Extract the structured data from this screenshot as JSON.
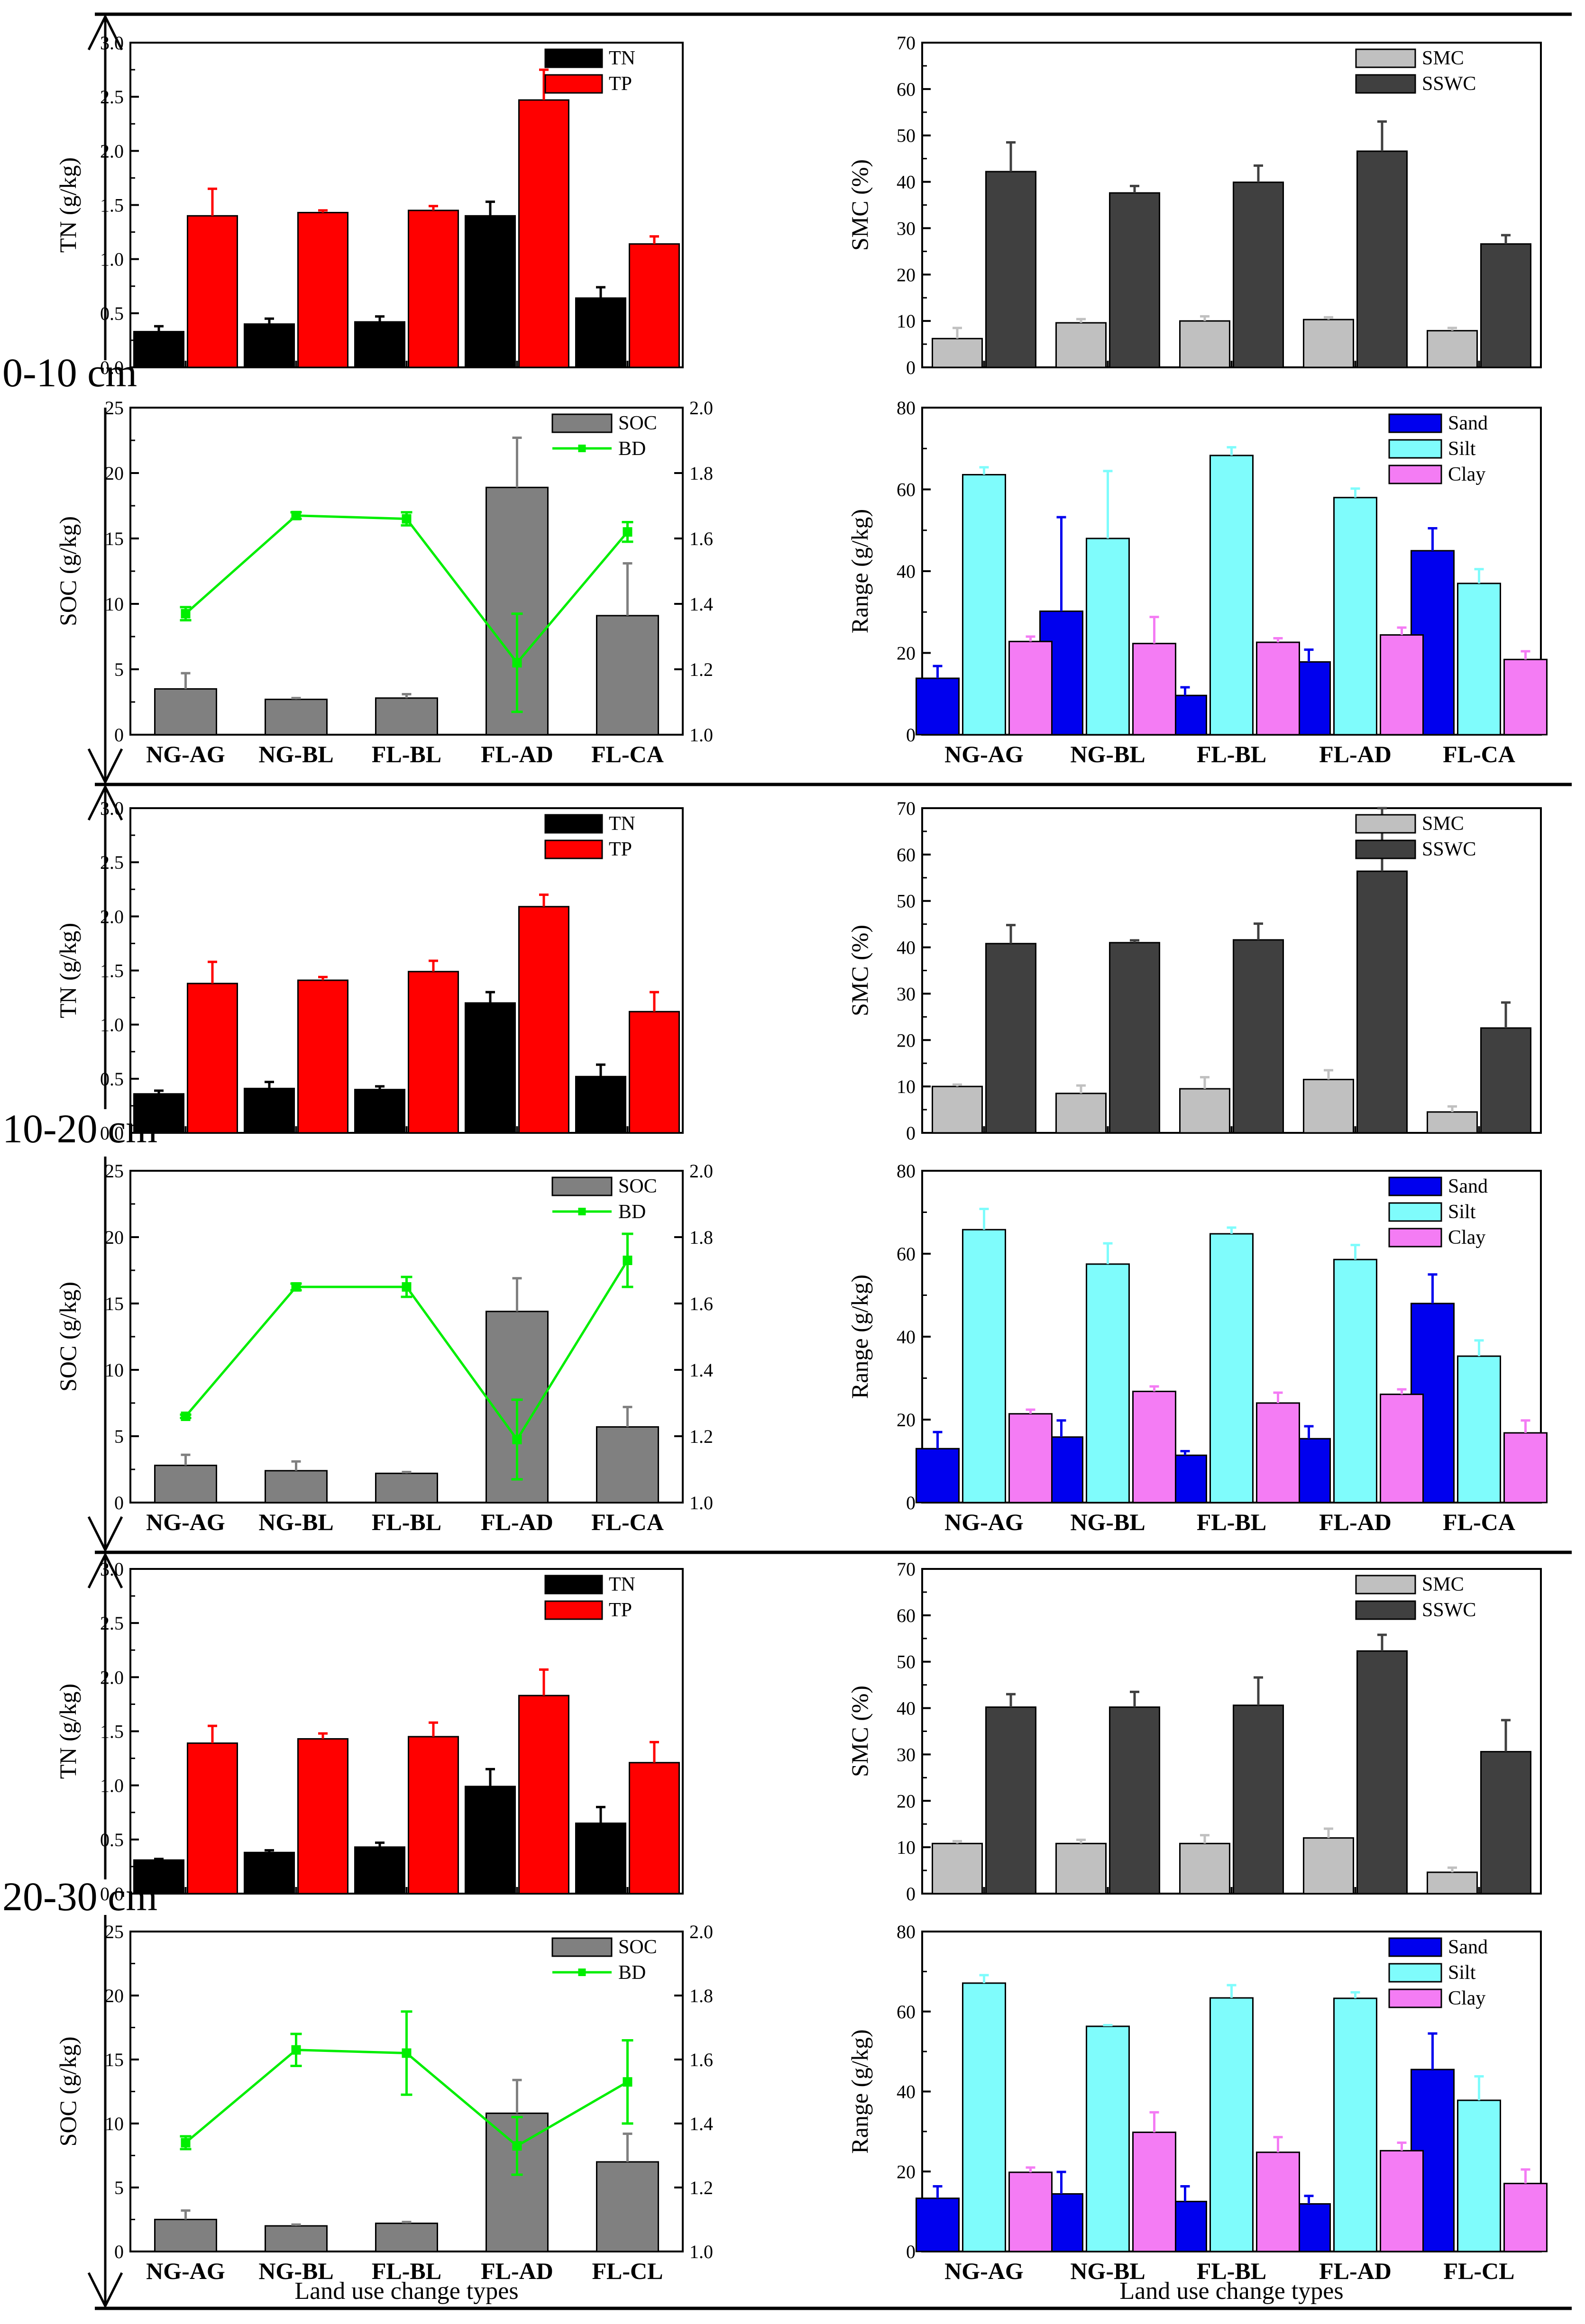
{
  "depth_labels": [
    "0-10 cm",
    "10-20 cm",
    "20-30 cm"
  ],
  "x_axis_title": "Land use change types",
  "colors": {
    "TN": "#000000",
    "TP": "#ff0000",
    "SMC": "#c0c0c0",
    "SSWC": "#404040",
    "SOC": "#808080",
    "BD": "#00ee00",
    "Sand": "#0000ee",
    "Silt": "#7ffcfc",
    "Clay": "#f47cf4"
  },
  "chart_data": [
    {
      "id": "tn_tp_0_10",
      "type": "bar",
      "depth": "0-10 cm",
      "categories": [
        "",
        "",
        "",
        "",
        ""
      ],
      "ylabel": "TN (g/kg)",
      "ylim": [
        0,
        3.0
      ],
      "yticks": [
        "0.0",
        "0.5",
        "1.0",
        "1.5",
        "2.0",
        "2.5",
        "3.0"
      ],
      "series": [
        {
          "name": "TN",
          "values": [
            0.33,
            0.4,
            0.42,
            1.4,
            0.64
          ],
          "errors": [
            0.05,
            0.05,
            0.05,
            0.13,
            0.1
          ]
        },
        {
          "name": "TP",
          "values": [
            1.4,
            1.43,
            1.45,
            2.47,
            1.14
          ],
          "errors": [
            0.25,
            0.02,
            0.04,
            0.28,
            0.07
          ]
        }
      ]
    },
    {
      "id": "smc_0_10",
      "type": "bar",
      "depth": "0-10 cm",
      "categories": [
        "",
        "",
        "",
        "",
        ""
      ],
      "ylabel": "SMC (%)",
      "ylim": [
        0,
        70
      ],
      "yticks": [
        "0",
        "10",
        "20",
        "30",
        "40",
        "50",
        "60",
        "70"
      ],
      "series": [
        {
          "name": "SMC",
          "values": [
            6.2,
            9.6,
            10.0,
            10.3,
            7.9
          ],
          "errors": [
            2.3,
            0.8,
            1.0,
            0.5,
            0.6
          ]
        },
        {
          "name": "SSWC",
          "values": [
            42.2,
            37.6,
            39.9,
            46.6,
            26.6
          ],
          "errors": [
            6.3,
            1.5,
            3.6,
            6.4,
            1.9
          ]
        }
      ]
    },
    {
      "id": "soc_bd_0_10",
      "type": "bar+line",
      "depth": "0-10 cm",
      "categories": [
        "NG-AG",
        "NG-BL",
        "FL-BL",
        "FL-AD",
        "FL-CA"
      ],
      "ylabel": "SOC (g/kg)",
      "ylim": [
        0,
        25
      ],
      "yticks": [
        "0",
        "5",
        "10",
        "15",
        "20",
        "25"
      ],
      "y2lim": [
        1.0,
        2.0
      ],
      "y2ticks": [
        "1.0",
        "1.2",
        "1.4",
        "1.6",
        "1.8",
        "2.0"
      ],
      "series": [
        {
          "name": "SOC",
          "kind": "bar",
          "values": [
            3.5,
            2.7,
            2.8,
            18.9,
            9.1
          ],
          "errors": [
            1.2,
            0.1,
            0.3,
            3.8,
            4.0
          ]
        },
        {
          "name": "BD",
          "kind": "line",
          "values": [
            1.37,
            1.67,
            1.66,
            1.22,
            1.62
          ],
          "errors": [
            0.02,
            0.01,
            0.02,
            0.15,
            0.03
          ]
        }
      ]
    },
    {
      "id": "texture_0_10",
      "type": "bar",
      "depth": "0-10 cm",
      "categories": [
        "NG-AG",
        "NG-BL",
        "FL-BL",
        "FL-AD",
        "FL-CA"
      ],
      "ylabel": "Range (g/kg)",
      "ylim": [
        0,
        80
      ],
      "yticks": [
        "0",
        "20",
        "40",
        "60",
        "80"
      ],
      "series": [
        {
          "name": "Sand",
          "values": [
            13.8,
            30.2,
            9.6,
            17.8,
            45.0
          ],
          "errors": [
            3.0,
            23.0,
            2.0,
            3.0,
            5.5
          ]
        },
        {
          "name": "Silt",
          "values": [
            63.6,
            48.0,
            68.3,
            58.0,
            37.0
          ],
          "errors": [
            1.8,
            16.5,
            2.0,
            2.2,
            3.5
          ]
        },
        {
          "name": "Clay",
          "values": [
            22.8,
            22.3,
            22.6,
            24.4,
            18.4
          ],
          "errors": [
            1.2,
            6.5,
            1.0,
            1.8,
            2.0
          ]
        }
      ]
    },
    {
      "id": "tn_tp_10_20",
      "type": "bar",
      "depth": "10-20 cm",
      "categories": [
        "",
        "",
        "",
        "",
        ""
      ],
      "ylabel": "TN (g/kg)",
      "ylim": [
        0,
        3.0
      ],
      "yticks": [
        "0.0",
        "0.5",
        "1.0",
        "1.5",
        "2.0",
        "2.5",
        "3.0"
      ],
      "series": [
        {
          "name": "TN",
          "values": [
            0.36,
            0.41,
            0.4,
            1.2,
            0.52
          ],
          "errors": [
            0.03,
            0.06,
            0.03,
            0.1,
            0.11
          ]
        },
        {
          "name": "TP",
          "values": [
            1.38,
            1.41,
            1.49,
            2.09,
            1.12
          ],
          "errors": [
            0.2,
            0.03,
            0.1,
            0.11,
            0.18
          ]
        }
      ]
    },
    {
      "id": "smc_10_20",
      "type": "bar",
      "depth": "10-20 cm",
      "categories": [
        "",
        "",
        "",
        "",
        ""
      ],
      "ylabel": "SMC (%)",
      "ylim": [
        0,
        70
      ],
      "yticks": [
        "0",
        "10",
        "20",
        "30",
        "40",
        "50",
        "60",
        "70"
      ],
      "series": [
        {
          "name": "SMC",
          "values": [
            10.0,
            8.5,
            9.5,
            11.5,
            4.5
          ],
          "errors": [
            0.4,
            1.7,
            2.5,
            2.0,
            1.2
          ]
        },
        {
          "name": "SSWC",
          "values": [
            40.8,
            41.0,
            41.6,
            56.4,
            22.6
          ],
          "errors": [
            4.0,
            0.5,
            3.5,
            13.6,
            5.5
          ]
        }
      ]
    },
    {
      "id": "soc_bd_10_20",
      "type": "bar+line",
      "depth": "10-20 cm",
      "categories": [
        "NG-AG",
        "NG-BL",
        "FL-BL",
        "FL-AD",
        "FL-CA"
      ],
      "ylabel": "SOC (g/kg)",
      "ylim": [
        0,
        25
      ],
      "yticks": [
        "0",
        "5",
        "10",
        "15",
        "20",
        "25"
      ],
      "y2lim": [
        1.0,
        2.0
      ],
      "y2ticks": [
        "1.0",
        "1.2",
        "1.4",
        "1.6",
        "1.8",
        "2.0"
      ],
      "series": [
        {
          "name": "SOC",
          "kind": "bar",
          "values": [
            2.8,
            2.4,
            2.2,
            14.4,
            5.7
          ],
          "errors": [
            0.8,
            0.7,
            0.1,
            2.5,
            1.5
          ]
        },
        {
          "name": "BD",
          "kind": "line",
          "values": [
            1.26,
            1.65,
            1.65,
            1.19,
            1.73
          ],
          "errors": [
            0.005,
            0.01,
            0.03,
            0.12,
            0.08
          ]
        }
      ]
    },
    {
      "id": "texture_10_20",
      "type": "bar",
      "depth": "10-20 cm",
      "categories": [
        "NG-AG",
        "NG-BL",
        "FL-BL",
        "FL-AD",
        "FL-CA"
      ],
      "ylabel": "Range (g/kg)",
      "ylim": [
        0,
        80
      ],
      "yticks": [
        "0",
        "20",
        "40",
        "60",
        "80"
      ],
      "series": [
        {
          "name": "Sand",
          "values": [
            13.0,
            15.8,
            11.4,
            15.4,
            48.0
          ],
          "errors": [
            4.0,
            4.0,
            1.0,
            3.0,
            7.0
          ]
        },
        {
          "name": "Silt",
          "values": [
            65.8,
            57.5,
            64.8,
            58.6,
            35.3
          ],
          "errors": [
            5.0,
            5.0,
            1.5,
            3.5,
            3.8
          ]
        },
        {
          "name": "Clay",
          "values": [
            21.4,
            26.8,
            24.0,
            26.1,
            16.8
          ],
          "errors": [
            1.0,
            1.2,
            2.5,
            1.2,
            3.0
          ]
        }
      ]
    },
    {
      "id": "tn_tp_20_30",
      "type": "bar",
      "depth": "20-30 cm",
      "categories": [
        "",
        "",
        "",
        "",
        ""
      ],
      "ylabel": "TN (g/kg)",
      "ylim": [
        0,
        3.0
      ],
      "yticks": [
        "0.0",
        "0.5",
        "1.0",
        "1.5",
        "2.0",
        "2.5",
        "3.0"
      ],
      "series": [
        {
          "name": "TN",
          "values": [
            0.31,
            0.38,
            0.43,
            0.99,
            0.65
          ],
          "errors": [
            0.01,
            0.02,
            0.04,
            0.16,
            0.15
          ]
        },
        {
          "name": "TP",
          "values": [
            1.39,
            1.43,
            1.45,
            1.83,
            1.21
          ],
          "errors": [
            0.16,
            0.05,
            0.13,
            0.24,
            0.19
          ]
        }
      ]
    },
    {
      "id": "smc_20_30",
      "type": "bar",
      "depth": "20-30 cm",
      "categories": [
        "",
        "",
        "",
        "",
        ""
      ],
      "ylabel": "SMC (%)",
      "ylim": [
        0,
        70
      ],
      "yticks": [
        "0",
        "10",
        "20",
        "30",
        "40",
        "50",
        "60",
        "70"
      ],
      "series": [
        {
          "name": "SMC",
          "values": [
            10.8,
            10.8,
            10.8,
            12.0,
            4.6
          ],
          "errors": [
            0.5,
            0.8,
            1.8,
            2.0,
            1.0
          ]
        },
        {
          "name": "SSWC",
          "values": [
            40.2,
            40.2,
            40.6,
            52.3,
            30.6
          ],
          "errors": [
            2.8,
            3.3,
            6.0,
            3.5,
            6.8
          ]
        }
      ]
    },
    {
      "id": "soc_bd_20_30",
      "type": "bar+line",
      "depth": "20-30 cm",
      "categories": [
        "NG-AG",
        "NG-BL",
        "FL-BL",
        "FL-AD",
        "FL-CL"
      ],
      "ylabel": "SOC (g/kg)",
      "ylim": [
        0,
        25
      ],
      "yticks": [
        "0",
        "5",
        "10",
        "15",
        "20",
        "25"
      ],
      "y2lim": [
        1.0,
        2.0
      ],
      "y2ticks": [
        "1.0",
        "1.2",
        "1.4",
        "1.6",
        "1.8",
        "2.0"
      ],
      "series": [
        {
          "name": "SOC",
          "kind": "bar",
          "values": [
            2.5,
            2.0,
            2.2,
            10.8,
            7.0
          ],
          "errors": [
            0.7,
            0.1,
            0.1,
            2.6,
            2.2
          ]
        },
        {
          "name": "BD",
          "kind": "line",
          "values": [
            1.34,
            1.63,
            1.62,
            1.33,
            1.53
          ],
          "errors": [
            0.02,
            0.05,
            0.13,
            0.09,
            0.13
          ]
        }
      ]
    },
    {
      "id": "texture_20_30",
      "type": "bar",
      "depth": "20-30 cm",
      "categories": [
        "NG-AG",
        "NG-BL",
        "FL-BL",
        "FL-AD",
        "FL-CL"
      ],
      "ylabel": "Range (g/kg)",
      "ylim": [
        0,
        80
      ],
      "yticks": [
        "0",
        "20",
        "40",
        "60",
        "80"
      ],
      "series": [
        {
          "name": "Sand",
          "values": [
            13.3,
            14.4,
            12.5,
            11.9,
            45.5
          ],
          "errors": [
            3.0,
            5.5,
            3.8,
            2.0,
            9.0
          ]
        },
        {
          "name": "Silt",
          "values": [
            67.1,
            56.3,
            63.4,
            63.3,
            37.8
          ],
          "errors": [
            2.0,
            0.3,
            3.2,
            1.5,
            6.0
          ]
        },
        {
          "name": "Clay",
          "values": [
            19.8,
            29.8,
            24.8,
            25.2,
            17.0
          ],
          "errors": [
            1.2,
            5.0,
            3.8,
            2.0,
            3.5
          ]
        }
      ]
    }
  ]
}
